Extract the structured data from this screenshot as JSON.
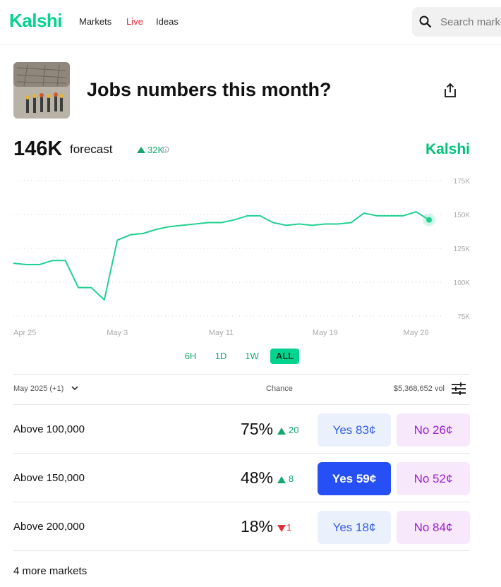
{
  "nav": {
    "logo": "Kalshi",
    "links": [
      {
        "label": "Markets",
        "live": false
      },
      {
        "label": "Live",
        "live": true
      },
      {
        "label": "Ideas",
        "live": false
      }
    ],
    "search_placeholder": "Search markets"
  },
  "header": {
    "title": "Jobs numbers this month?"
  },
  "forecast": {
    "value": "146K",
    "label": "forecast",
    "change": "32K",
    "brand": "Kalshi"
  },
  "chart_data": {
    "type": "line",
    "categories": [
      "Apr 25",
      null,
      null,
      null,
      null,
      null,
      null,
      null,
      "May 3",
      null,
      null,
      null,
      null,
      null,
      null,
      null,
      "May 11",
      null,
      null,
      null,
      null,
      null,
      null,
      null,
      "May 19",
      null,
      null,
      null,
      null,
      null,
      null,
      "May 26",
      null
    ],
    "series": [
      {
        "color": "#1fd18e",
        "values": [
          114000,
          113000,
          113000,
          116000,
          116000,
          96000,
          96000,
          87000,
          131000,
          135000,
          136000,
          139000,
          141000,
          142000,
          143000,
          144000,
          144000,
          146000,
          149000,
          149000,
          144000,
          142000,
          143000,
          142000,
          143000,
          143000,
          144000,
          151000,
          149000,
          149000,
          149000,
          152000,
          146000
        ]
      }
    ],
    "ylim": [
      70000,
      180000
    ],
    "yticks": [
      {
        "value": 75000,
        "label": "75K"
      },
      {
        "value": 100000,
        "label": "100K"
      },
      {
        "value": 125000,
        "label": "125K"
      },
      {
        "value": 150000,
        "label": "150K"
      },
      {
        "value": 175000,
        "label": "175K"
      }
    ],
    "grid": true
  },
  "ranges": [
    {
      "label": "6H",
      "selected": false
    },
    {
      "label": "1D",
      "selected": false
    },
    {
      "label": "1W",
      "selected": false
    },
    {
      "label": "ALL",
      "selected": true
    }
  ],
  "table": {
    "period": "May 2025 (+1)",
    "chance_header": "Chance",
    "volume": "$5,368,652 vol",
    "rows": [
      {
        "label": "Above 100,000",
        "chance": "75%",
        "change": "20",
        "direction": "up",
        "yes": "Yes 83¢",
        "no": "No 26¢",
        "highlighted": false
      },
      {
        "label": "Above 150,000",
        "chance": "48%",
        "change": "8",
        "direction": "up",
        "yes": "Yes 59¢",
        "no": "No 52¢",
        "highlighted": true
      },
      {
        "label": "Above 200,000",
        "chance": "18%",
        "change": "1",
        "direction": "down",
        "yes": "Yes 18¢",
        "no": "No 84¢",
        "highlighted": false
      }
    ]
  },
  "more": "4 more markets"
}
